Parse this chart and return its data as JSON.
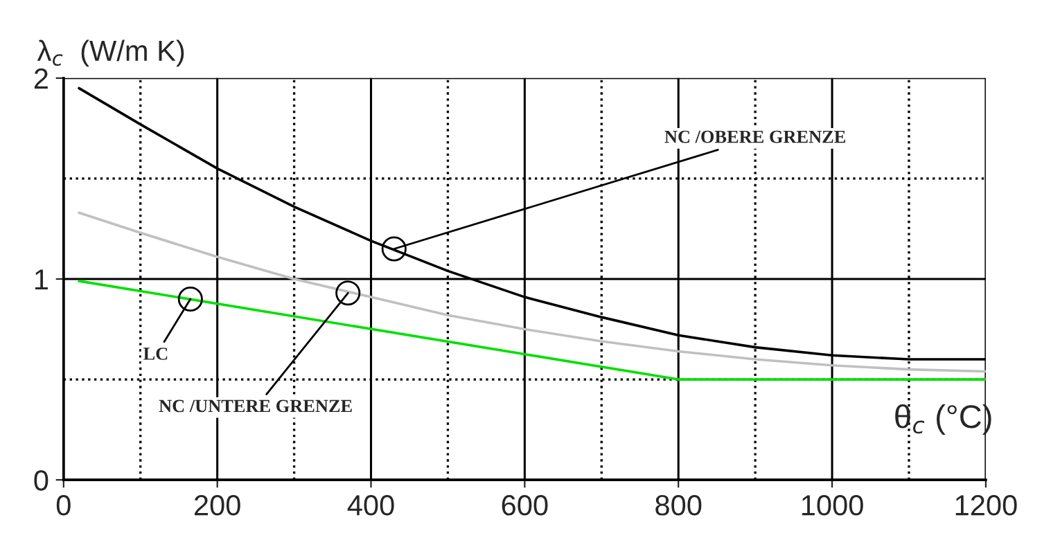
{
  "chart_data": {
    "type": "line",
    "xlabel": "θ$_{c}$ (°C)",
    "ylabel": "λ$_{c}$  (W/m K)",
    "xlim": [
      0,
      1200
    ],
    "xticks": [
      0,
      200,
      400,
      600,
      800,
      1000,
      1200
    ],
    "ylim": [
      0,
      2
    ],
    "yticks": [
      0,
      1,
      2
    ],
    "grid": true,
    "series": [
      {
        "color": "#000000",
        "x": [
          20,
          100,
          200,
          300,
          400,
          500,
          600,
          700,
          800,
          900,
          1000,
          1100,
          1200
        ],
        "values": [
          1.95,
          1.77,
          1.55,
          1.36,
          1.19,
          1.04,
          0.91,
          0.81,
          0.72,
          0.66,
          0.62,
          0.6,
          0.6
        ]
      },
      {
        "color": "#c0c0c0",
        "x": [
          20,
          100,
          200,
          300,
          400,
          500,
          600,
          700,
          800,
          900,
          1000,
          1100,
          1200
        ],
        "values": [
          1.33,
          1.23,
          1.11,
          1.0,
          0.91,
          0.82,
          0.75,
          0.69,
          0.64,
          0.6,
          0.57,
          0.55,
          0.54
        ]
      },
      {
        "color": "#00e000",
        "x": [
          20,
          800,
          1200
        ],
        "values": [
          0.99,
          0.5,
          0.5
        ]
      }
    ],
    "ref_lines": [
      {
        "axis": "x",
        "value": 100,
        "line_style": "dotted"
      },
      {
        "axis": "x",
        "value": 300,
        "line_style": "dotted"
      },
      {
        "axis": "x",
        "value": 500,
        "line_style": "dotted"
      },
      {
        "axis": "x",
        "value": 700,
        "line_style": "dotted"
      },
      {
        "axis": "x",
        "value": 900,
        "line_style": "dotted"
      },
      {
        "axis": "x",
        "value": 1100,
        "line_style": "dotted"
      },
      {
        "axis": "y",
        "value": 0.5,
        "line_style": "dotted"
      },
      {
        "axis": "y",
        "value": 1.5,
        "line_style": "dotted"
      }
    ],
    "annotations": [
      {
        "text": "NC /OBERE GRENZE",
        "x": 430,
        "y": 1.15
      },
      {
        "text": "NC /UNTERE GRENZE",
        "x": 370,
        "y": 0.93
      },
      {
        "text": "LC",
        "x": 165,
        "y": 0.9
      }
    ]
  }
}
